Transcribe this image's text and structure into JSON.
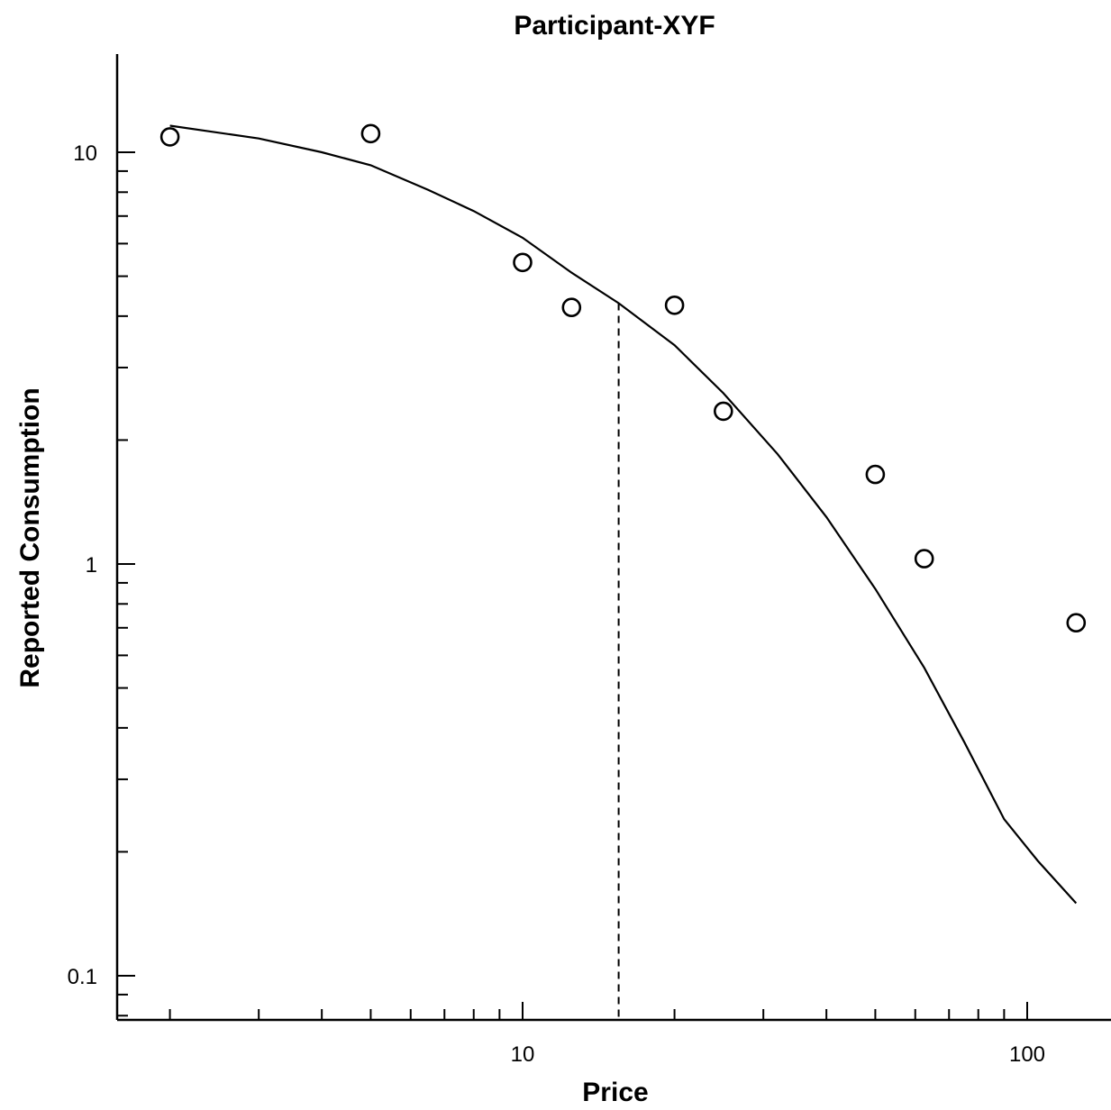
{
  "chart_data": {
    "type": "scatter",
    "title": "Participant-XYF",
    "xlabel": "Price",
    "ylabel": "Reported Consumption",
    "xscale": "log",
    "yscale": "log",
    "xlim": [
      1.6,
      150
    ],
    "ylim": [
      0.078,
      17
    ],
    "x_ticks": [
      10,
      100
    ],
    "x_tick_labels": [
      "10",
      "100"
    ],
    "y_ticks": [
      0.1,
      1,
      10
    ],
    "y_tick_labels": [
      "0.1",
      "1",
      "10"
    ],
    "grid": false,
    "legend": "none",
    "points": [
      {
        "x": 2,
        "y": 10.9
      },
      {
        "x": 5,
        "y": 11.1
      },
      {
        "x": 10,
        "y": 5.4
      },
      {
        "x": 12.5,
        "y": 4.2
      },
      {
        "x": 20,
        "y": 4.25
      },
      {
        "x": 25,
        "y": 2.35
      },
      {
        "x": 50,
        "y": 1.65
      },
      {
        "x": 62.5,
        "y": 1.03
      },
      {
        "x": 125,
        "y": 0.72
      }
    ],
    "fitted_curve": [
      {
        "x": 2,
        "y": 11.6
      },
      {
        "x": 3,
        "y": 10.8
      },
      {
        "x": 4,
        "y": 10.0
      },
      {
        "x": 5,
        "y": 9.3
      },
      {
        "x": 6.5,
        "y": 8.1
      },
      {
        "x": 8,
        "y": 7.2
      },
      {
        "x": 10,
        "y": 6.2
      },
      {
        "x": 12.5,
        "y": 5.1
      },
      {
        "x": 15.5,
        "y": 4.3
      },
      {
        "x": 20,
        "y": 3.4
      },
      {
        "x": 25,
        "y": 2.6
      },
      {
        "x": 32,
        "y": 1.85
      },
      {
        "x": 40,
        "y": 1.3
      },
      {
        "x": 50,
        "y": 0.87
      },
      {
        "x": 62.5,
        "y": 0.56
      },
      {
        "x": 75,
        "y": 0.37
      },
      {
        "x": 90,
        "y": 0.24
      },
      {
        "x": 105,
        "y": 0.19
      },
      {
        "x": 125,
        "y": 0.15
      }
    ],
    "pmax_line": {
      "x": 15.5,
      "y": 4.3
    }
  }
}
